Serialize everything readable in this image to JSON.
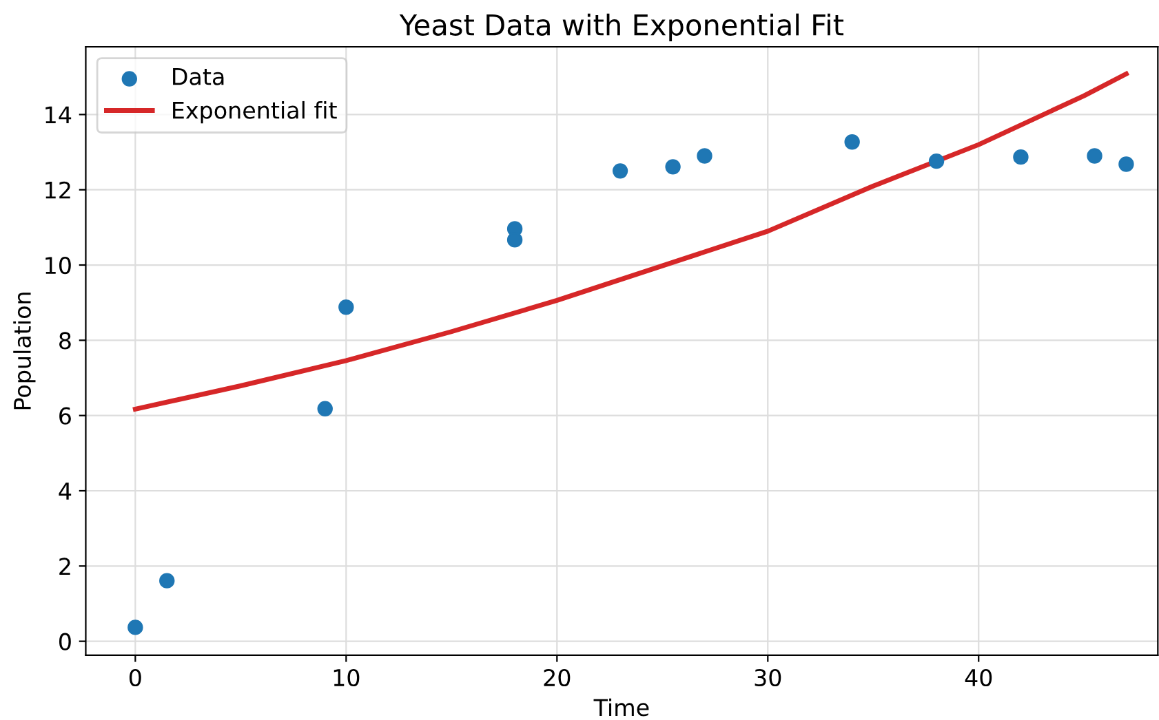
{
  "chart_data": {
    "type": "scatter",
    "title": "Yeast Data with Exponential Fit",
    "xlabel": "Time",
    "ylabel": "Population",
    "xlim": [
      -2.35,
      48.5
    ],
    "ylim": [
      -0.37,
      15.8
    ],
    "xticks": [
      0,
      10,
      20,
      30,
      40
    ],
    "yticks": [
      0,
      2,
      4,
      6,
      8,
      10,
      12,
      14
    ],
    "grid": true,
    "legend": "top left",
    "series": [
      {
        "name": "Data",
        "color": "#1f77b4",
        "marker": "circle",
        "x": [
          0,
          1.5,
          9,
          10,
          18,
          18,
          23,
          25.5,
          27,
          34,
          38,
          42,
          45.5,
          47
        ],
        "values": [
          0.37,
          1.61,
          6.18,
          8.88,
          10.96,
          10.67,
          12.5,
          12.61,
          12.9,
          13.27,
          12.76,
          12.87,
          12.9,
          12.68
        ]
      },
      {
        "name": "Exponential fit",
        "type": "line",
        "color": "#d62728",
        "line_style": "solid",
        "x": [
          0,
          5,
          10,
          15,
          20,
          25,
          30,
          35,
          40,
          45,
          47
        ],
        "values": [
          6.17,
          6.79,
          7.46,
          8.23,
          9.06,
          9.98,
          10.9,
          12.1,
          13.2,
          14.5,
          15.08
        ]
      }
    ]
  }
}
